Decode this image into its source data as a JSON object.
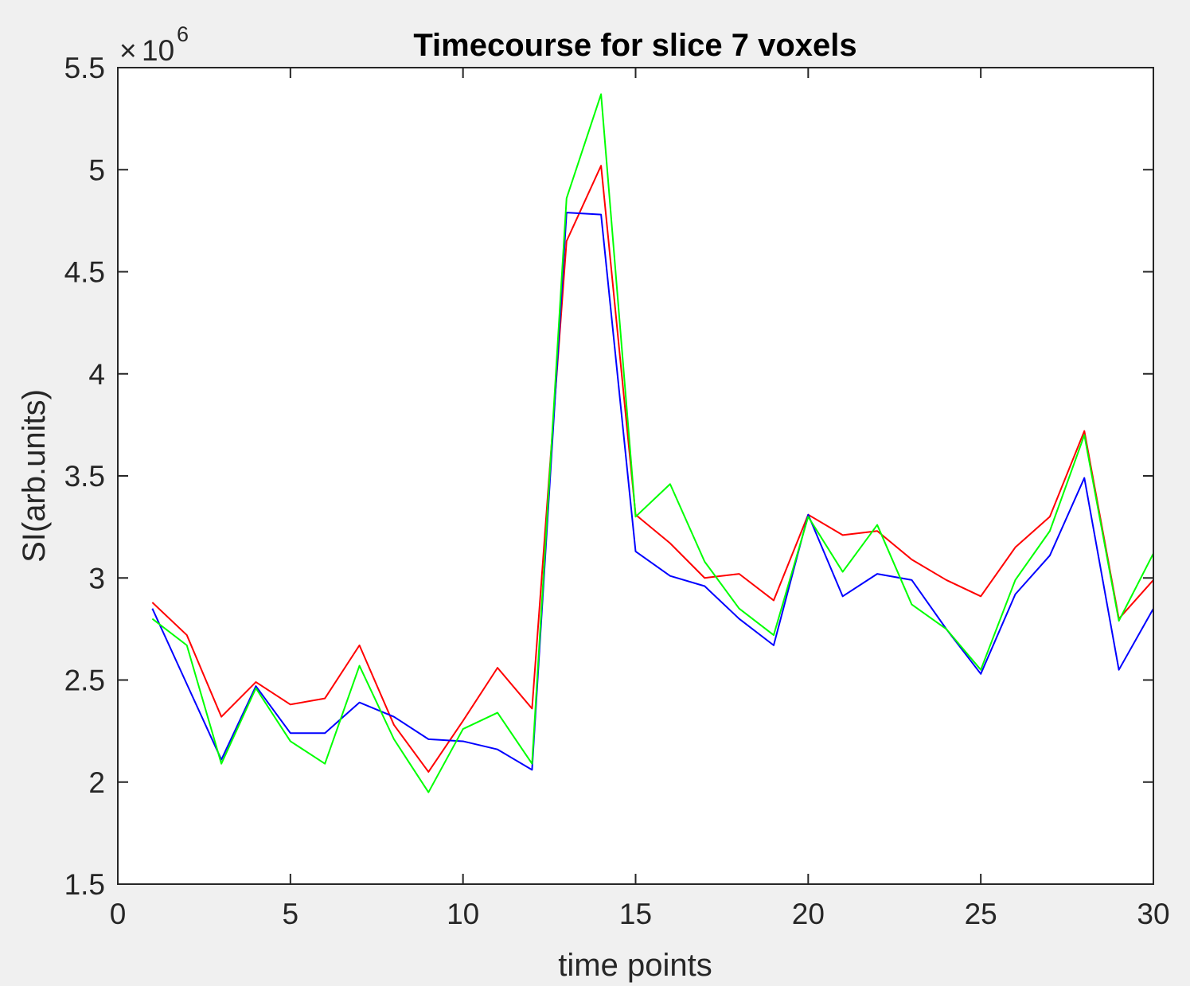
{
  "chart_data": {
    "type": "line",
    "title": "Timecourse for slice 7 voxels",
    "xlabel": "time points",
    "ylabel": "SI(arb.units)",
    "y_exponent": {
      "times": "×",
      "base": "10",
      "power": "6"
    },
    "xlim": [
      0,
      30
    ],
    "ylim": [
      1.5,
      5.5
    ],
    "y_scale_factor": 1000000,
    "xticks": [
      0,
      5,
      10,
      15,
      20,
      25,
      30
    ],
    "yticks": [
      1.5,
      2,
      2.5,
      3,
      3.5,
      4,
      4.5,
      5,
      5.5
    ],
    "grid": false,
    "legend": "none",
    "x": [
      1,
      2,
      3,
      4,
      5,
      6,
      7,
      8,
      9,
      10,
      11,
      12,
      13,
      14,
      15,
      16,
      17,
      18,
      19,
      20,
      21,
      22,
      23,
      24,
      25,
      26,
      27,
      28,
      29,
      30
    ],
    "series": [
      {
        "color": "#ff0000",
        "values": [
          2.88,
          2.72,
          2.32,
          2.49,
          2.38,
          2.41,
          2.67,
          2.28,
          2.05,
          2.3,
          2.56,
          2.36,
          4.65,
          5.02,
          3.31,
          3.17,
          3.0,
          3.02,
          2.89,
          3.31,
          3.21,
          3.23,
          3.09,
          2.99,
          2.91,
          3.15,
          3.3,
          3.72,
          2.8,
          2.99
        ]
      },
      {
        "color": "#0000ff",
        "values": [
          2.85,
          2.48,
          2.11,
          2.47,
          2.24,
          2.24,
          2.39,
          2.32,
          2.21,
          2.2,
          2.16,
          2.06,
          4.79,
          4.78,
          3.13,
          3.01,
          2.96,
          2.8,
          2.67,
          3.31,
          2.91,
          3.02,
          2.99,
          2.75,
          2.53,
          2.92,
          3.11,
          3.49,
          2.55,
          2.85
        ]
      },
      {
        "color": "#00ff00",
        "values": [
          2.8,
          2.67,
          2.09,
          2.46,
          2.2,
          2.09,
          2.57,
          2.21,
          1.95,
          2.26,
          2.34,
          2.09,
          4.86,
          5.37,
          3.3,
          3.46,
          3.08,
          2.85,
          2.72,
          3.3,
          3.03,
          3.26,
          2.87,
          2.75,
          2.55,
          2.99,
          3.23,
          3.7,
          2.79,
          3.12
        ]
      }
    ]
  }
}
